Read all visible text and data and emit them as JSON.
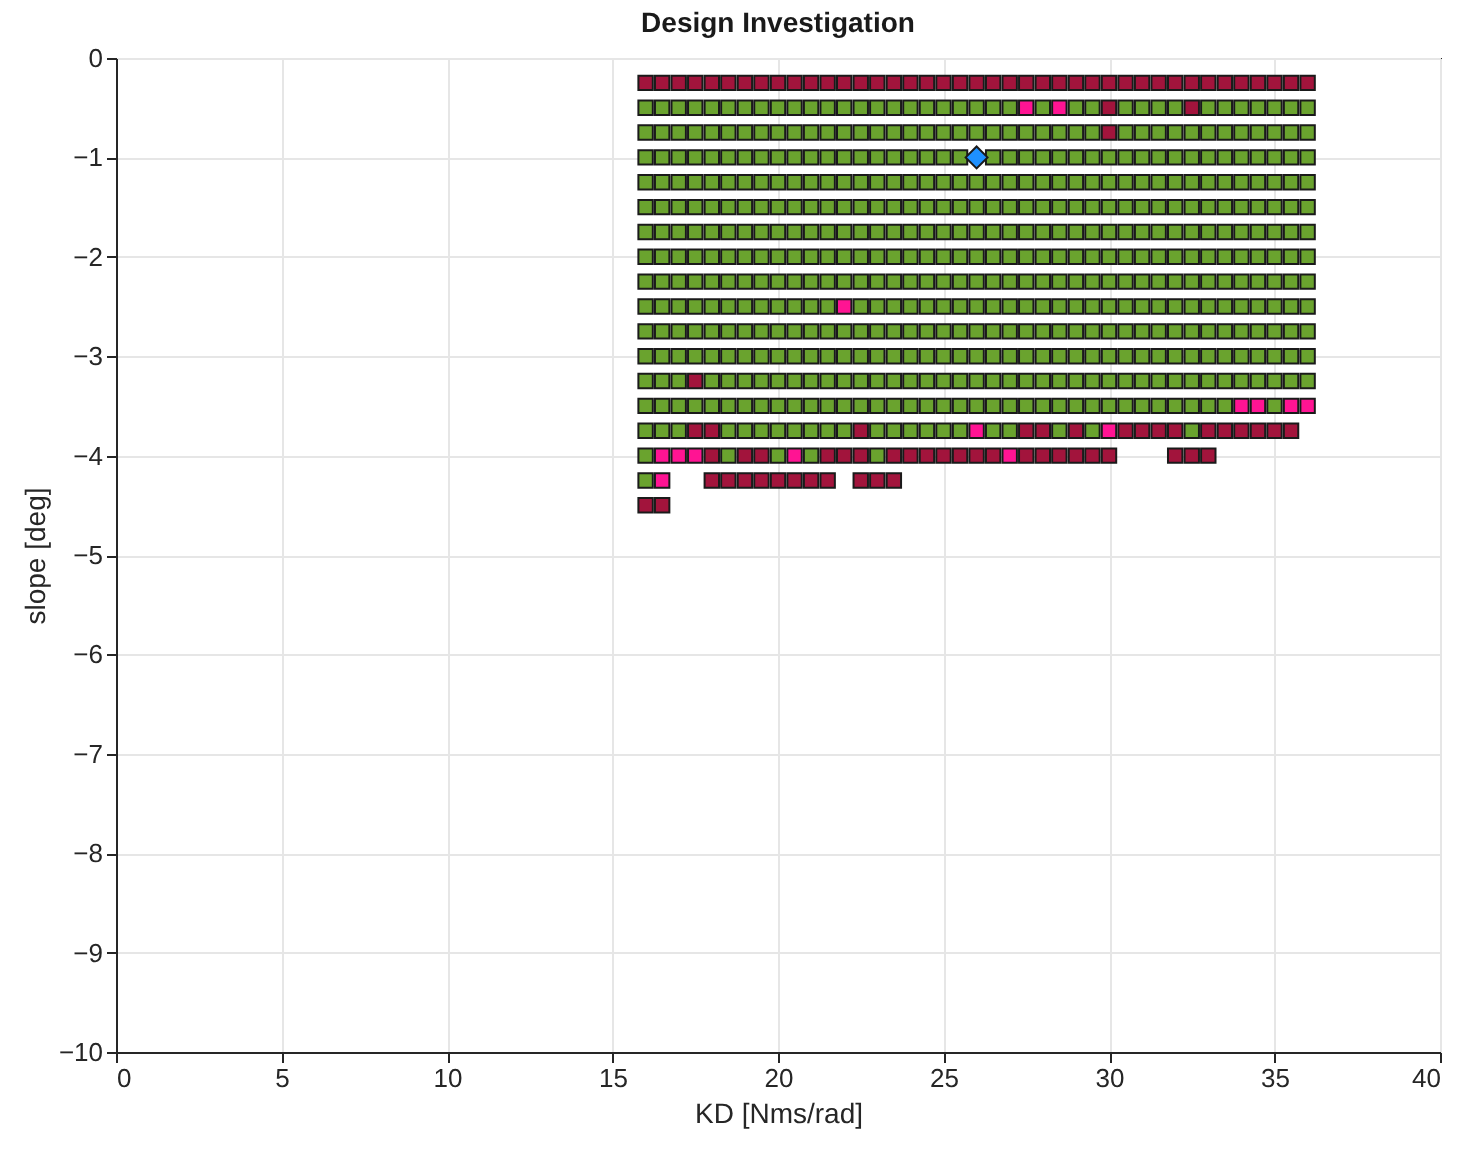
{
  "chart_data": {
    "type": "scatter",
    "title": "Design Investigation",
    "xlabel": "KD [Nms/rad]",
    "ylabel": "slope [deg]",
    "xlim": [
      0,
      40
    ],
    "xticks": [
      0,
      5,
      10,
      15,
      20,
      25,
      30,
      35,
      40
    ],
    "ylim": [
      -10,
      0
    ],
    "yticks": [
      -10,
      -9,
      -8,
      -7,
      -6,
      -5,
      -4,
      -3,
      -2,
      -1,
      0
    ],
    "grid": true,
    "marker": "square",
    "series": [
      {
        "type": "scatter",
        "color": "#a2143c",
        "x": [
          16,
          16.5,
          17,
          17.5,
          18,
          18.5,
          19,
          19.5,
          20,
          20.5,
          21,
          21.5,
          22,
          22.5,
          23,
          23.5,
          24,
          24.5,
          25,
          25.5,
          26,
          26.5,
          27,
          27.5,
          28,
          28.5,
          29,
          29.5,
          30,
          30.5,
          31,
          31.5,
          32,
          32.5,
          33,
          33.5,
          34,
          34.5,
          35,
          35.5,
          36
        ],
        "values": [
          -0.25,
          -0.25,
          -0.25,
          -0.25,
          -0.25,
          -0.25,
          -0.25,
          -0.25,
          -0.25,
          -0.25,
          -0.25,
          -0.25,
          -0.25,
          -0.25,
          -0.25,
          -0.25,
          -0.25,
          -0.25,
          -0.25,
          -0.25,
          -0.25,
          -0.25,
          -0.25,
          -0.25,
          -0.25,
          -0.25,
          -0.25,
          -0.25,
          -0.25,
          -0.25,
          -0.25,
          -0.25,
          -0.25,
          -0.25,
          -0.25,
          -0.25,
          -0.25,
          -0.25,
          -0.25,
          -0.25,
          -0.25
        ]
      },
      {
        "type": "scatter",
        "color": "#a2143c",
        "x": [
          30,
          32.5,
          30,
          17.5,
          16,
          16.5
        ],
        "values": [
          -0.5,
          -0.5,
          -0.75,
          -3.25,
          -4.5,
          -4.5
        ]
      },
      {
        "type": "scatter",
        "color": "#a2143c",
        "x": [
          17.5,
          18,
          22.5,
          27.5,
          28,
          29,
          30.5,
          31,
          31.5,
          32,
          33,
          33.5,
          34,
          34.5,
          35,
          35.5
        ],
        "values": [
          -3.75,
          -3.75,
          -3.75,
          -3.75,
          -3.75,
          -3.75,
          -3.75,
          -3.75,
          -3.75,
          -3.75,
          -3.75,
          -3.75,
          -3.75,
          -3.75,
          -3.75,
          -3.75
        ]
      },
      {
        "type": "scatter",
        "color": "#a2143c",
        "x": [
          18,
          19,
          19.5,
          21.5,
          22,
          22.5,
          23.5,
          24,
          24.5,
          25,
          25.5,
          26,
          26.5,
          27.5,
          28,
          28.5,
          29,
          29.5,
          30,
          32,
          32.5,
          33
        ],
        "values": [
          -4,
          -4,
          -4,
          -4,
          -4,
          -4,
          -4,
          -4,
          -4,
          -4,
          -4,
          -4,
          -4,
          -4,
          -4,
          -4,
          -4,
          -4,
          -4,
          -4,
          -4,
          -4
        ]
      },
      {
        "type": "scatter",
        "color": "#a2143c",
        "x": [
          18,
          18.5,
          19,
          19.5,
          20,
          20.5,
          21,
          21.5,
          22.5,
          23,
          23.5
        ],
        "values": [
          -4.25,
          -4.25,
          -4.25,
          -4.25,
          -4.25,
          -4.25,
          -4.25,
          -4.25,
          -4.25,
          -4.25,
          -4.25
        ]
      },
      {
        "type": "scatter",
        "color": "#ff1493",
        "x": [
          27.5,
          28.5,
          22,
          34,
          34.5,
          35.5,
          36,
          26,
          30,
          16.5,
          17,
          17.5,
          20.5,
          27,
          16.5
        ],
        "values": [
          -0.5,
          -0.5,
          -2.5,
          -3.5,
          -3.5,
          -3.5,
          -3.5,
          -3.75,
          -3.75,
          -4,
          -4,
          -4,
          -4,
          -4,
          -4.25
        ]
      },
      {
        "type": "scatter",
        "color": "#6aa32e",
        "x": [
          16,
          16.5,
          17,
          17.5,
          18,
          18.5,
          19,
          19.5,
          20,
          20.5,
          21,
          21.5,
          22,
          22.5,
          23,
          23.5,
          24,
          24.5,
          25,
          25.5,
          26,
          26.5,
          27,
          28,
          29,
          29.5,
          30.5,
          31,
          31.5,
          32,
          33,
          33.5,
          34,
          34.5,
          35,
          35.5,
          36
        ],
        "values": [
          -0.5,
          -0.5,
          -0.5,
          -0.5,
          -0.5,
          -0.5,
          -0.5,
          -0.5,
          -0.5,
          -0.5,
          -0.5,
          -0.5,
          -0.5,
          -0.5,
          -0.5,
          -0.5,
          -0.5,
          -0.5,
          -0.5,
          -0.5,
          -0.5,
          -0.5,
          -0.5,
          -0.5,
          -0.5,
          -0.5,
          -0.5,
          -0.5,
          -0.5,
          -0.5,
          -0.5,
          -0.5,
          -0.5,
          -0.5,
          -0.5,
          -0.5,
          -0.5
        ]
      },
      {
        "type": "scatter",
        "color": "#6aa32e",
        "x": [
          16,
          16.5,
          17,
          17.5,
          18,
          18.5,
          19,
          19.5,
          20,
          20.5,
          21,
          21.5,
          22,
          22.5,
          23,
          23.5,
          24,
          24.5,
          25,
          25.5,
          26,
          26.5,
          27,
          27.5,
          28,
          28.5,
          29,
          29.5,
          30.5,
          31,
          31.5,
          32,
          32.5,
          33,
          33.5,
          34,
          34.5,
          35,
          35.5,
          36
        ],
        "values": [
          -0.75,
          -0.75,
          -0.75,
          -0.75,
          -0.75,
          -0.75,
          -0.75,
          -0.75,
          -0.75,
          -0.75,
          -0.75,
          -0.75,
          -0.75,
          -0.75,
          -0.75,
          -0.75,
          -0.75,
          -0.75,
          -0.75,
          -0.75,
          -0.75,
          -0.75,
          -0.75,
          -0.75,
          -0.75,
          -0.75,
          -0.75,
          -0.75,
          -0.75,
          -0.75,
          -0.75,
          -0.75,
          -0.75,
          -0.75,
          -0.75,
          -0.75,
          -0.75,
          -0.75,
          -0.75,
          -0.75
        ]
      },
      {
        "type": "scatter",
        "color": "#6aa32e",
        "x": [
          16,
          16.5,
          17,
          17.5,
          18,
          18.5,
          19,
          19.5,
          20,
          20.5,
          21,
          21.5,
          22,
          22.5,
          23,
          23.5,
          24,
          24.5,
          25,
          25.5,
          26.5,
          27,
          27.5,
          28,
          28.5,
          29,
          29.5,
          30,
          30.5,
          31,
          31.5,
          32,
          32.5,
          33,
          33.5,
          34,
          34.5,
          35,
          35.5,
          36
        ],
        "values": [
          -1,
          -1,
          -1,
          -1,
          -1,
          -1,
          -1,
          -1,
          -1,
          -1,
          -1,
          -1,
          -1,
          -1,
          -1,
          -1,
          -1,
          -1,
          -1,
          -1,
          -1,
          -1,
          -1,
          -1,
          -1,
          -1,
          -1,
          -1,
          -1,
          -1,
          -1,
          -1,
          -1,
          -1,
          -1,
          -1,
          -1,
          -1,
          -1,
          -1
        ]
      },
      {
        "type": "scatter",
        "color": "#6aa32e",
        "x": [
          16,
          16.5,
          17,
          17.5,
          18,
          18.5,
          19,
          19.5,
          20,
          20.5,
          21,
          21.5,
          22,
          22.5,
          23,
          23.5,
          24,
          24.5,
          25,
          25.5,
          26,
          26.5,
          27,
          27.5,
          28,
          28.5,
          29,
          29.5,
          30,
          30.5,
          31,
          31.5,
          32,
          32.5,
          33,
          33.5,
          34,
          34.5,
          35,
          35.5,
          36
        ],
        "values": [
          -1.25,
          -1.25,
          -1.25,
          -1.25,
          -1.25,
          -1.25,
          -1.25,
          -1.25,
          -1.25,
          -1.25,
          -1.25,
          -1.25,
          -1.25,
          -1.25,
          -1.25,
          -1.25,
          -1.25,
          -1.25,
          -1.25,
          -1.25,
          -1.25,
          -1.25,
          -1.25,
          -1.25,
          -1.25,
          -1.25,
          -1.25,
          -1.25,
          -1.25,
          -1.25,
          -1.25,
          -1.25,
          -1.25,
          -1.25,
          -1.25,
          -1.25,
          -1.25,
          -1.25,
          -1.25,
          -1.25,
          -1.25
        ]
      },
      {
        "type": "scatter",
        "color": "#6aa32e",
        "x": [
          16,
          16.5,
          17,
          17.5,
          18,
          18.5,
          19,
          19.5,
          20,
          20.5,
          21,
          21.5,
          22,
          22.5,
          23,
          23.5,
          24,
          24.5,
          25,
          25.5,
          26,
          26.5,
          27,
          27.5,
          28,
          28.5,
          29,
          29.5,
          30,
          30.5,
          31,
          31.5,
          32,
          32.5,
          33,
          33.5,
          34,
          34.5,
          35,
          35.5,
          36
        ],
        "values": [
          -1.5,
          -1.5,
          -1.5,
          -1.5,
          -1.5,
          -1.5,
          -1.5,
          -1.5,
          -1.5,
          -1.5,
          -1.5,
          -1.5,
          -1.5,
          -1.5,
          -1.5,
          -1.5,
          -1.5,
          -1.5,
          -1.5,
          -1.5,
          -1.5,
          -1.5,
          -1.5,
          -1.5,
          -1.5,
          -1.5,
          -1.5,
          -1.5,
          -1.5,
          -1.5,
          -1.5,
          -1.5,
          -1.5,
          -1.5,
          -1.5,
          -1.5,
          -1.5,
          -1.5,
          -1.5,
          -1.5,
          -1.5
        ]
      },
      {
        "type": "scatter",
        "color": "#6aa32e",
        "x": [
          16,
          16.5,
          17,
          17.5,
          18,
          18.5,
          19,
          19.5,
          20,
          20.5,
          21,
          21.5,
          22,
          22.5,
          23,
          23.5,
          24,
          24.5,
          25,
          25.5,
          26,
          26.5,
          27,
          27.5,
          28,
          28.5,
          29,
          29.5,
          30,
          30.5,
          31,
          31.5,
          32,
          32.5,
          33,
          33.5,
          34,
          34.5,
          35,
          35.5,
          36
        ],
        "values": [
          -1.75,
          -1.75,
          -1.75,
          -1.75,
          -1.75,
          -1.75,
          -1.75,
          -1.75,
          -1.75,
          -1.75,
          -1.75,
          -1.75,
          -1.75,
          -1.75,
          -1.75,
          -1.75,
          -1.75,
          -1.75,
          -1.75,
          -1.75,
          -1.75,
          -1.75,
          -1.75,
          -1.75,
          -1.75,
          -1.75,
          -1.75,
          -1.75,
          -1.75,
          -1.75,
          -1.75,
          -1.75,
          -1.75,
          -1.75,
          -1.75,
          -1.75,
          -1.75,
          -1.75,
          -1.75,
          -1.75,
          -1.75
        ]
      },
      {
        "type": "scatter",
        "color": "#6aa32e",
        "x": [
          16,
          16.5,
          17,
          17.5,
          18,
          18.5,
          19,
          19.5,
          20,
          20.5,
          21,
          21.5,
          22,
          22.5,
          23,
          23.5,
          24,
          24.5,
          25,
          25.5,
          26,
          26.5,
          27,
          27.5,
          28,
          28.5,
          29,
          29.5,
          30,
          30.5,
          31,
          31.5,
          32,
          32.5,
          33,
          33.5,
          34,
          34.5,
          35,
          35.5,
          36
        ],
        "values": [
          -2,
          -2,
          -2,
          -2,
          -2,
          -2,
          -2,
          -2,
          -2,
          -2,
          -2,
          -2,
          -2,
          -2,
          -2,
          -2,
          -2,
          -2,
          -2,
          -2,
          -2,
          -2,
          -2,
          -2,
          -2,
          -2,
          -2,
          -2,
          -2,
          -2,
          -2,
          -2,
          -2,
          -2,
          -2,
          -2,
          -2,
          -2,
          -2,
          -2,
          -2
        ]
      },
      {
        "type": "scatter",
        "color": "#6aa32e",
        "x": [
          16,
          16.5,
          17,
          17.5,
          18,
          18.5,
          19,
          19.5,
          20,
          20.5,
          21,
          21.5,
          22,
          22.5,
          23,
          23.5,
          24,
          24.5,
          25,
          25.5,
          26,
          26.5,
          27,
          27.5,
          28,
          28.5,
          29,
          29.5,
          30,
          30.5,
          31,
          31.5,
          32,
          32.5,
          33,
          33.5,
          34,
          34.5,
          35,
          35.5,
          36
        ],
        "values": [
          -2.25,
          -2.25,
          -2.25,
          -2.25,
          -2.25,
          -2.25,
          -2.25,
          -2.25,
          -2.25,
          -2.25,
          -2.25,
          -2.25,
          -2.25,
          -2.25,
          -2.25,
          -2.25,
          -2.25,
          -2.25,
          -2.25,
          -2.25,
          -2.25,
          -2.25,
          -2.25,
          -2.25,
          -2.25,
          -2.25,
          -2.25,
          -2.25,
          -2.25,
          -2.25,
          -2.25,
          -2.25,
          -2.25,
          -2.25,
          -2.25,
          -2.25,
          -2.25,
          -2.25,
          -2.25,
          -2.25,
          -2.25
        ]
      },
      {
        "type": "scatter",
        "color": "#6aa32e",
        "x": [
          16,
          16.5,
          17,
          17.5,
          18,
          18.5,
          19,
          19.5,
          20,
          20.5,
          21,
          21.5,
          22.5,
          23,
          23.5,
          24,
          24.5,
          25,
          25.5,
          26,
          26.5,
          27,
          27.5,
          28,
          28.5,
          29,
          29.5,
          30,
          30.5,
          31,
          31.5,
          32,
          32.5,
          33,
          33.5,
          34,
          34.5,
          35,
          35.5,
          36
        ],
        "values": [
          -2.5,
          -2.5,
          -2.5,
          -2.5,
          -2.5,
          -2.5,
          -2.5,
          -2.5,
          -2.5,
          -2.5,
          -2.5,
          -2.5,
          -2.5,
          -2.5,
          -2.5,
          -2.5,
          -2.5,
          -2.5,
          -2.5,
          -2.5,
          -2.5,
          -2.5,
          -2.5,
          -2.5,
          -2.5,
          -2.5,
          -2.5,
          -2.5,
          -2.5,
          -2.5,
          -2.5,
          -2.5,
          -2.5,
          -2.5,
          -2.5,
          -2.5,
          -2.5,
          -2.5,
          -2.5,
          -2.5
        ]
      },
      {
        "type": "scatter",
        "color": "#6aa32e",
        "x": [
          16,
          16.5,
          17,
          17.5,
          18,
          18.5,
          19,
          19.5,
          20,
          20.5,
          21,
          21.5,
          22,
          22.5,
          23,
          23.5,
          24,
          24.5,
          25,
          25.5,
          26,
          26.5,
          27,
          27.5,
          28,
          28.5,
          29,
          29.5,
          30,
          30.5,
          31,
          31.5,
          32,
          32.5,
          33,
          33.5,
          34,
          34.5,
          35,
          35.5,
          36
        ],
        "values": [
          -2.75,
          -2.75,
          -2.75,
          -2.75,
          -2.75,
          -2.75,
          -2.75,
          -2.75,
          -2.75,
          -2.75,
          -2.75,
          -2.75,
          -2.75,
          -2.75,
          -2.75,
          -2.75,
          -2.75,
          -2.75,
          -2.75,
          -2.75,
          -2.75,
          -2.75,
          -2.75,
          -2.75,
          -2.75,
          -2.75,
          -2.75,
          -2.75,
          -2.75,
          -2.75,
          -2.75,
          -2.75,
          -2.75,
          -2.75,
          -2.75,
          -2.75,
          -2.75,
          -2.75,
          -2.75,
          -2.75,
          -2.75
        ]
      },
      {
        "type": "scatter",
        "color": "#6aa32e",
        "x": [
          16,
          16.5,
          17,
          17.5,
          18,
          18.5,
          19,
          19.5,
          20,
          20.5,
          21,
          21.5,
          22,
          22.5,
          23,
          23.5,
          24,
          24.5,
          25,
          25.5,
          26,
          26.5,
          27,
          27.5,
          28,
          28.5,
          29,
          29.5,
          30,
          30.5,
          31,
          31.5,
          32,
          32.5,
          33,
          33.5,
          34,
          34.5,
          35,
          35.5,
          36
        ],
        "values": [
          -3,
          -3,
          -3,
          -3,
          -3,
          -3,
          -3,
          -3,
          -3,
          -3,
          -3,
          -3,
          -3,
          -3,
          -3,
          -3,
          -3,
          -3,
          -3,
          -3,
          -3,
          -3,
          -3,
          -3,
          -3,
          -3,
          -3,
          -3,
          -3,
          -3,
          -3,
          -3,
          -3,
          -3,
          -3,
          -3,
          -3,
          -3,
          -3,
          -3,
          -3
        ]
      },
      {
        "type": "scatter",
        "color": "#6aa32e",
        "x": [
          16,
          16.5,
          17,
          18,
          18.5,
          19,
          19.5,
          20,
          20.5,
          21,
          21.5,
          22,
          22.5,
          23,
          23.5,
          24,
          24.5,
          25,
          25.5,
          26,
          26.5,
          27,
          27.5,
          28,
          28.5,
          29,
          29.5,
          30,
          30.5,
          31,
          31.5,
          32,
          32.5,
          33,
          33.5,
          34,
          34.5,
          35,
          35.5,
          36
        ],
        "values": [
          -3.25,
          -3.25,
          -3.25,
          -3.25,
          -3.25,
          -3.25,
          -3.25,
          -3.25,
          -3.25,
          -3.25,
          -3.25,
          -3.25,
          -3.25,
          -3.25,
          -3.25,
          -3.25,
          -3.25,
          -3.25,
          -3.25,
          -3.25,
          -3.25,
          -3.25,
          -3.25,
          -3.25,
          -3.25,
          -3.25,
          -3.25,
          -3.25,
          -3.25,
          -3.25,
          -3.25,
          -3.25,
          -3.25,
          -3.25,
          -3.25,
          -3.25,
          -3.25,
          -3.25,
          -3.25,
          -3.25
        ]
      },
      {
        "type": "scatter",
        "color": "#6aa32e",
        "x": [
          16,
          16.5,
          17,
          17.5,
          18,
          18.5,
          19,
          19.5,
          20,
          20.5,
          21,
          21.5,
          22,
          22.5,
          23,
          23.5,
          24,
          24.5,
          25,
          25.5,
          26,
          26.5,
          27,
          27.5,
          28,
          28.5,
          29,
          29.5,
          30,
          30.5,
          31,
          31.5,
          32,
          32.5,
          33,
          33.5,
          35
        ],
        "values": [
          -3.5,
          -3.5,
          -3.5,
          -3.5,
          -3.5,
          -3.5,
          -3.5,
          -3.5,
          -3.5,
          -3.5,
          -3.5,
          -3.5,
          -3.5,
          -3.5,
          -3.5,
          -3.5,
          -3.5,
          -3.5,
          -3.5,
          -3.5,
          -3.5,
          -3.5,
          -3.5,
          -3.5,
          -3.5,
          -3.5,
          -3.5,
          -3.5,
          -3.5,
          -3.5,
          -3.5,
          -3.5,
          -3.5,
          -3.5,
          -3.5,
          -3.5,
          -3.5
        ]
      },
      {
        "type": "scatter",
        "color": "#6aa32e",
        "x": [
          16,
          16.5,
          17,
          18.5,
          19,
          19.5,
          20,
          20.5,
          21,
          21.5,
          22,
          23,
          23.5,
          24,
          24.5,
          25,
          25.5,
          26.5,
          27,
          28.5,
          29.5,
          32.5
        ],
        "values": [
          -3.75,
          -3.75,
          -3.75,
          -3.75,
          -3.75,
          -3.75,
          -3.75,
          -3.75,
          -3.75,
          -3.75,
          -3.75,
          -3.75,
          -3.75,
          -3.75,
          -3.75,
          -3.75,
          -3.75,
          -3.75,
          -3.75,
          -3.75,
          -3.75,
          -3.75
        ]
      },
      {
        "type": "scatter",
        "color": "#6aa32e",
        "x": [
          16,
          18.5,
          20,
          21,
          23,
          16
        ],
        "values": [
          -4,
          -4,
          -4,
          -4,
          -4,
          -4.25
        ]
      },
      {
        "type": "scatter",
        "color": "#1e90ff",
        "marker": "diamond",
        "x": [
          26
        ],
        "values": [
          -1
        ]
      }
    ]
  }
}
